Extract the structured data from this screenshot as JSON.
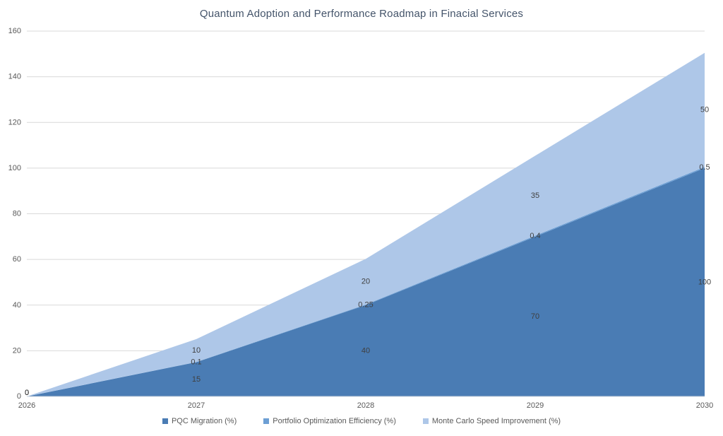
{
  "colors": {
    "background": "#FFFFFF",
    "gridline": "#D9D9D9",
    "axis_line": "#C9D2DC",
    "title_text": "#44546A",
    "tick_text": "#595959",
    "data_label_text": "#3F3F3F",
    "legend_text": "#595959"
  },
  "chart_data": {
    "type": "area",
    "stacked": true,
    "title": "Quantum Adoption and Performance Roadmap in Finacial Services",
    "xlabel": "",
    "ylabel": "",
    "x_labels": [
      "2026",
      "2027",
      "2028",
      "2029",
      "2030"
    ],
    "ylim": [
      0,
      160
    ],
    "y_ticks": [
      0,
      20,
      40,
      60,
      80,
      100,
      120,
      140,
      160
    ],
    "grid": true,
    "legend_position": "bottom",
    "series": [
      {
        "name": "PQC Migration (%)",
        "color": "#4A7CB4",
        "values": [
          0,
          15,
          40,
          70,
          100
        ],
        "labels": [
          "0",
          "15",
          "40",
          "70",
          "100"
        ]
      },
      {
        "name": "Portfolio Optimization Efficiency (%)",
        "color": "#6D9FD4",
        "values": [
          0,
          0.1,
          0.25,
          0.4,
          0.5
        ],
        "labels": [
          "0",
          "0.1",
          "0.25",
          "0.4",
          "0.5"
        ]
      },
      {
        "name": "Monte Carlo Speed Improvement (%)",
        "color": "#AEC7E8",
        "values": [
          0,
          10,
          20,
          35,
          50
        ],
        "labels": [
          "0",
          "10",
          "20",
          "35",
          "50"
        ]
      }
    ]
  }
}
